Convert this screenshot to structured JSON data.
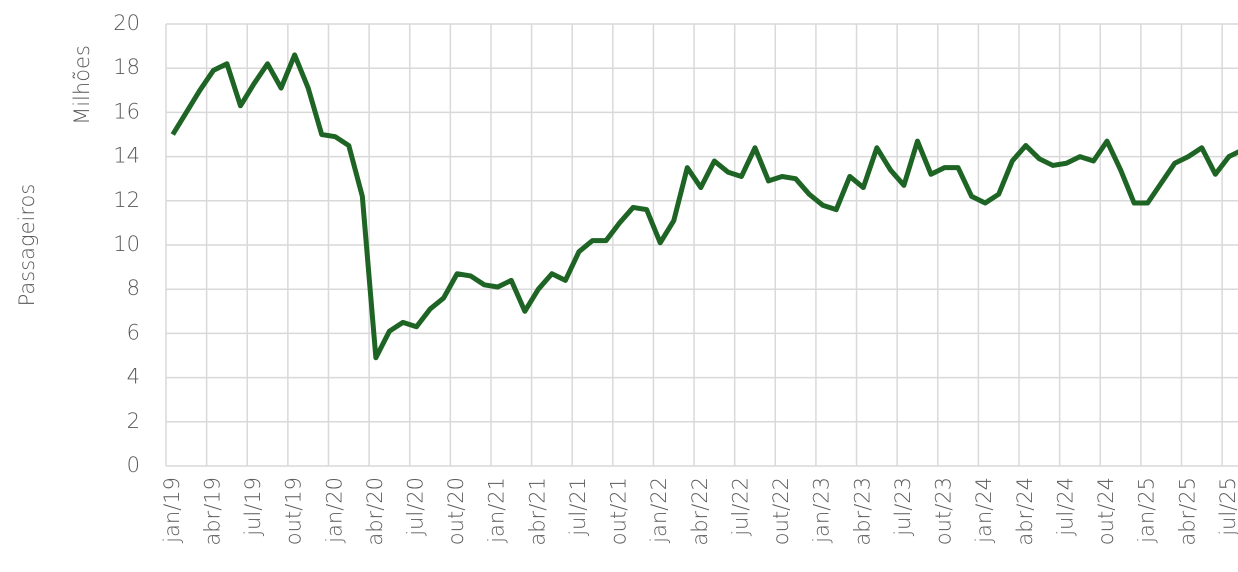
{
  "chart_data": {
    "type": "line",
    "y_label": "Passageiros",
    "y_unit_label": "Milhões",
    "categories": [
      "jan/19",
      null,
      null,
      "abr/19",
      null,
      null,
      "jul/19",
      null,
      null,
      "out/19",
      null,
      null,
      "jan/20",
      null,
      null,
      "abr/20",
      null,
      null,
      "jul/20",
      null,
      null,
      "out/20",
      null,
      null,
      "jan/21",
      null,
      null,
      "abr/21",
      null,
      null,
      "jul/21",
      null,
      null,
      "out/21",
      null,
      null,
      "jan/22",
      null,
      null,
      "abr/22",
      null,
      null,
      "jul/22",
      null,
      null,
      "out/22",
      null,
      null,
      "jan/23",
      null,
      null,
      "abr/23",
      null,
      null,
      "jul/23",
      null,
      null,
      "out/23",
      null,
      null,
      "jan/24",
      null,
      null,
      "abr/24",
      null,
      null,
      "jul/24",
      null,
      null,
      "out/24",
      null,
      null,
      "jan/25",
      null,
      null,
      "abr/25",
      null,
      null,
      "jul/25",
      null
    ],
    "series": [
      {
        "name": "Passageiros",
        "color": "#1e6424",
        "values": [
          15.0,
          16.0,
          17.0,
          17.9,
          18.2,
          16.3,
          17.3,
          18.2,
          17.1,
          18.6,
          17.1,
          15.0,
          14.9,
          14.5,
          12.2,
          4.9,
          6.1,
          6.5,
          6.3,
          7.1,
          7.6,
          8.7,
          8.6,
          8.2,
          8.1,
          8.4,
          7.0,
          8.0,
          8.7,
          8.4,
          9.7,
          10.2,
          10.2,
          11.0,
          11.7,
          11.6,
          10.1,
          11.1,
          13.5,
          12.6,
          13.8,
          13.3,
          13.1,
          14.4,
          12.9,
          13.1,
          13.0,
          12.3,
          11.8,
          11.6,
          13.1,
          12.6,
          14.4,
          13.4,
          12.7,
          14.7,
          13.2,
          13.5,
          13.5,
          12.2,
          11.9,
          12.3,
          13.8,
          14.5,
          13.9,
          13.6,
          13.7,
          14.0,
          13.8,
          14.7,
          13.4,
          11.9,
          11.9,
          12.8,
          13.7,
          14.0,
          14.4,
          13.2,
          14.0,
          14.3
        ]
      }
    ],
    "ylim": [
      0,
      20
    ],
    "yticks": [
      0,
      2,
      4,
      6,
      8,
      10,
      12,
      14,
      16,
      18,
      20
    ],
    "grid": true
  }
}
